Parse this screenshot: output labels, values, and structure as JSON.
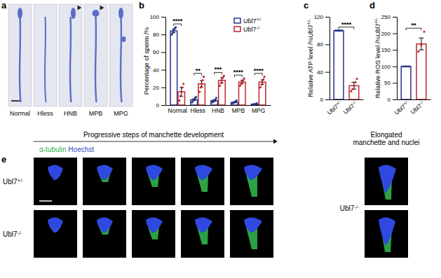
{
  "panel_letters": [
    "a",
    "b",
    "c",
    "d",
    "e"
  ],
  "panel_a": {
    "labels": [
      "Normal",
      "Hless",
      "HNB",
      "MPB",
      "MPG"
    ]
  },
  "chart_data": [
    {
      "type": "bar",
      "y_label": "Percentage of sperm /%",
      "categories": [
        "Normal",
        "Hless",
        "HNB",
        "MPB",
        "MPG"
      ],
      "series": [
        {
          "name": "Ubl7+/-",
          "color": "#27348b",
          "values": [
            84,
            6,
            5,
            3,
            1
          ],
          "errors": [
            2,
            1,
            1,
            0.5,
            0.3
          ],
          "points": [
            [
              80,
              82,
              85,
              87,
              88
            ],
            [
              3,
              5,
              6,
              8,
              9
            ],
            [
              3,
              4,
              5,
              6,
              8
            ],
            [
              2,
              3,
              3,
              4,
              5
            ],
            [
              0,
              1,
              1,
              1,
              2
            ]
          ]
        },
        {
          "name": "Ubl7-/-",
          "color": "#c0272d",
          "values": [
            15,
            24,
            28,
            26,
            26
          ],
          "errors": [
            5,
            3.5,
            3,
            2,
            2.5
          ],
          "points": [
            [
              5,
              10,
              15,
              20,
              24
            ],
            [
              15,
              20,
              24,
              28,
              32
            ],
            [
              22,
              25,
              28,
              31,
              33
            ],
            [
              22,
              24,
              26,
              28,
              30
            ],
            [
              20,
              23,
              26,
              29,
              32
            ]
          ]
        }
      ],
      "ylim": [
        0,
        100
      ],
      "yticks": [
        0,
        20,
        40,
        60,
        80,
        100
      ],
      "legend": "upper right",
      "significance": [
        "****",
        "**",
        "***",
        "****",
        "****"
      ]
    },
    {
      "type": "bar",
      "y_label": "Relative ATP level /%Ubl7+/-",
      "categories": [
        "Ubl7+/-",
        "Ubl7-/-"
      ],
      "values": [
        100,
        20
      ],
      "errors": [
        0,
        5
      ],
      "points": [
        [
          100,
          100,
          100,
          100
        ],
        [
          12,
          15,
          20,
          25,
          30
        ]
      ],
      "colors": [
        "#27348b",
        "#c0272d"
      ],
      "ylim": [
        0,
        120
      ],
      "yticks": [
        0,
        40,
        80,
        120
      ],
      "significance": [
        "****"
      ]
    },
    {
      "type": "bar",
      "y_label": "Relative ROS level /%Ubl7+/-",
      "categories": [
        "Ubl7+/-",
        "Ubl7-/-"
      ],
      "values": [
        100,
        168
      ],
      "errors": [
        0,
        18
      ],
      "points": [
        [
          100,
          100,
          100
        ],
        [
          145,
          165,
          205
        ]
      ],
      "colors": [
        "#27348b",
        "#c0272d"
      ],
      "ylim": [
        0,
        250
      ],
      "yticks": [
        0,
        50,
        100,
        150,
        200,
        250
      ],
      "significance": [
        "**"
      ]
    }
  ],
  "panel_e": {
    "title": "Progressive steps of manchette development",
    "stain_labels": [
      "α-tubulin",
      "Hoechst"
    ],
    "row_labels": [
      "Ubl7+/-",
      "Ubl7-/-"
    ],
    "side_title_lines": [
      "Elongated",
      "manchette and nuclei"
    ],
    "side_row_label": "Ubl7-/-"
  }
}
